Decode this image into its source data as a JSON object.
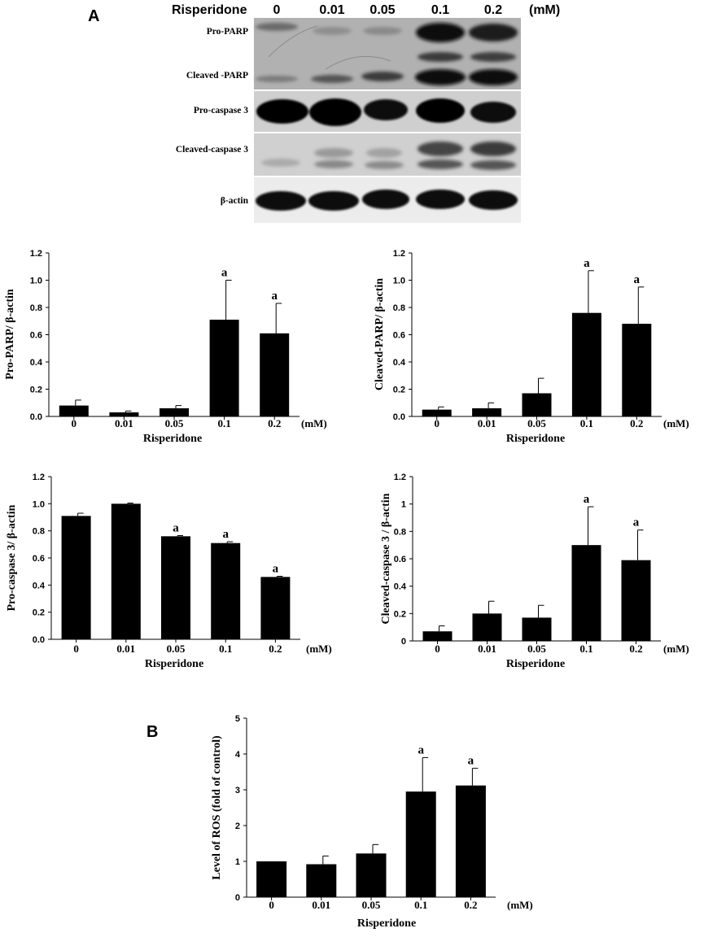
{
  "panel_a_label": "A",
  "panel_b_label": "B",
  "blot": {
    "header_label": "Risperidone",
    "concentrations": [
      "0",
      "0.01",
      "0.05",
      "0.1",
      "0.2"
    ],
    "unit": "(mM)",
    "rows": [
      {
        "label": "Pro-PARP"
      },
      {
        "label": "Cleaved -PARP"
      },
      {
        "label": "Pro-caspase 3"
      },
      {
        "label": "Cleaved-caspase 3"
      },
      {
        "label": "β-actin"
      }
    ]
  },
  "chart_data": [
    {
      "type": "bar",
      "categories": [
        "0",
        "0.01",
        "0.05",
        "0.1",
        "0.2"
      ],
      "values": [
        0.08,
        0.03,
        0.06,
        0.71,
        0.61
      ],
      "errors": [
        0.04,
        0.01,
        0.02,
        0.29,
        0.22
      ],
      "significance": [
        "",
        "",
        "",
        "a",
        "a"
      ],
      "ylabel": "Pro-PARP/ β-actin",
      "xlabel": "Risperidone",
      "unit": "(mM)",
      "ylim": [
        0,
        1.2
      ],
      "yticks": [
        "0.0",
        "0.2",
        "0.4",
        "0.6",
        "0.8",
        "1.0",
        "1.2"
      ]
    },
    {
      "type": "bar",
      "categories": [
        "0",
        "0.01",
        "0.05",
        "0.1",
        "0.2"
      ],
      "values": [
        0.05,
        0.06,
        0.17,
        0.76,
        0.68
      ],
      "errors": [
        0.02,
        0.04,
        0.11,
        0.31,
        0.27
      ],
      "significance": [
        "",
        "",
        "",
        "a",
        "a"
      ],
      "ylabel": "Cleaved-PARP/ β-actin",
      "xlabel": "Risperidone",
      "unit": "(mM)",
      "ylim": [
        0,
        1.2
      ],
      "yticks": [
        "0.0",
        "0.2",
        "0.4",
        "0.6",
        "0.8",
        "1.0",
        "1.2"
      ]
    },
    {
      "type": "bar",
      "categories": [
        "0",
        "0.01",
        "0.05",
        "0.1",
        "0.2"
      ],
      "values": [
        0.91,
        1.0,
        0.76,
        0.71,
        0.46
      ],
      "errors": [
        0.02,
        0.005,
        0.005,
        0.01,
        0.005
      ],
      "significance": [
        "",
        "",
        "a",
        "a",
        "a"
      ],
      "ylabel": "Pro-caspase 3/ β-actin",
      "xlabel": "Risperidone",
      "unit": "(mM)",
      "ylim": [
        0,
        1.2
      ],
      "yticks": [
        "0.0",
        "0.2",
        "0.4",
        "0.6",
        "0.8",
        "1.0",
        "1.2"
      ]
    },
    {
      "type": "bar",
      "categories": [
        "0",
        "0.01",
        "0.05",
        "0.1",
        "0.2"
      ],
      "values": [
        0.07,
        0.2,
        0.17,
        0.7,
        0.59
      ],
      "errors": [
        0.04,
        0.09,
        0.09,
        0.28,
        0.22
      ],
      "significance": [
        "",
        "",
        "",
        "a",
        "a"
      ],
      "ylabel": "Cleaved-caspase 3 / β-actin",
      "xlabel": "Risperidone",
      "unit": "(mM)",
      "ylim": [
        0,
        1.2
      ],
      "yticks": [
        "0",
        "0.2",
        "0.4",
        "0.6",
        "0.8",
        "1",
        "1.2"
      ]
    },
    {
      "type": "bar",
      "categories": [
        "0",
        "0.01",
        "0.05",
        "0.1",
        "0.2"
      ],
      "values": [
        1.0,
        0.92,
        1.22,
        2.95,
        3.12
      ],
      "errors": [
        0.0,
        0.23,
        0.25,
        0.95,
        0.48
      ],
      "significance": [
        "",
        "",
        "",
        "a",
        "a"
      ],
      "ylabel": "Level of ROS (fold of control)",
      "xlabel": "Risperidone",
      "unit": "(mM)",
      "ylim": [
        0,
        5
      ],
      "yticks": [
        "0",
        "1",
        "2",
        "3",
        "4",
        "5"
      ]
    }
  ]
}
